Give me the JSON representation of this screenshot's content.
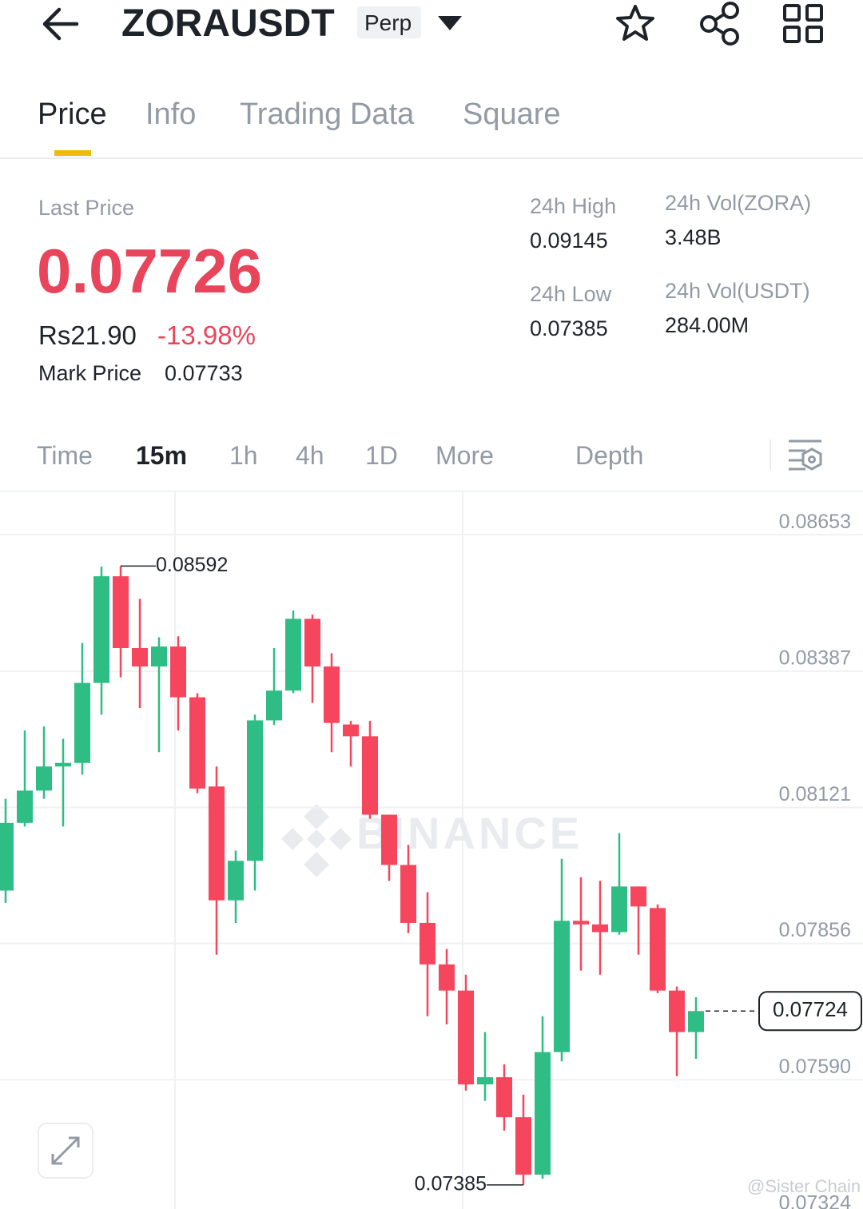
{
  "header": {
    "title": "ZORAUSDT",
    "badge": "Perp"
  },
  "tabs": [
    "Price",
    "Info",
    "Trading Data",
    "Square"
  ],
  "summary": {
    "last_price_label": "Last Price",
    "last_price": "0.07726",
    "fiat_price": "Rs21.90",
    "change": "-13.98%",
    "mark_price_label": "Mark Price",
    "mark_price": "0.07733"
  },
  "stats": [
    {
      "label": "24h High",
      "value": "0.09145"
    },
    {
      "label": "24h Vol(ZORA)",
      "value": "3.48B"
    },
    {
      "label": "24h Low",
      "value": "0.07385"
    },
    {
      "label": "24h Vol(USDT)",
      "value": "284.00M"
    }
  ],
  "intervals": [
    "Time",
    "15m",
    "1h",
    "4h",
    "1D",
    "More",
    "Depth"
  ],
  "footer": {
    "credit": "@Sister Chain"
  },
  "chart_data": {
    "type": "candlestick",
    "watermark": "BINANCE",
    "categories": [
      null,
      null,
      null,
      null,
      null,
      null,
      null,
      null,
      null,
      null,
      null,
      null,
      null,
      null,
      null,
      null,
      null,
      null,
      null,
      null,
      null,
      null,
      null,
      null,
      null,
      null,
      null,
      null,
      null,
      null,
      null,
      null,
      null,
      null,
      null,
      null,
      null
    ],
    "open": [
      0.07959,
      0.08091,
      0.08154,
      0.08201,
      0.08208,
      0.08364,
      0.08572,
      0.08432,
      0.08396,
      0.08435,
      0.08336,
      0.08162,
      0.0794,
      0.08017,
      0.08291,
      0.08349,
      0.08489,
      0.08396,
      0.08283,
      0.0826,
      0.08107,
      0.08009,
      0.07896,
      0.07815,
      0.07764,
      0.07581,
      0.07595,
      0.07517,
      0.07405,
      0.07644,
      0.079,
      0.07893,
      0.07878,
      0.07967,
      0.07925,
      0.07764,
      0.07683
    ],
    "high": [
      0.08138,
      0.08271,
      0.08279,
      0.08255,
      0.08442,
      0.08591,
      0.08592,
      0.08528,
      0.08453,
      0.08455,
      0.08344,
      0.08201,
      0.08037,
      0.08302,
      0.08432,
      0.08505,
      0.08497,
      0.08422,
      0.0829,
      0.0829,
      0.08107,
      0.08048,
      0.07956,
      0.07845,
      0.07795,
      0.07683,
      0.0762,
      0.07561,
      0.07714,
      0.08021,
      0.07985,
      0.07978,
      0.08071,
      0.07967,
      0.07932,
      0.07772,
      0.07751
    ],
    "low": [
      0.07935,
      0.08084,
      0.08138,
      0.08084,
      0.08185,
      0.08302,
      0.08375,
      0.08315,
      0.08229,
      0.08271,
      0.08149,
      0.07834,
      0.07896,
      0.07959,
      0.08282,
      0.08344,
      0.08325,
      0.08229,
      0.08201,
      0.08099,
      0.07978,
      0.07876,
      0.07714,
      0.07698,
      0.07569,
      0.07549,
      0.07491,
      0.07385,
      0.07397,
      0.07626,
      0.07803,
      0.07795,
      0.07873,
      0.07834,
      0.07759,
      0.07597,
      0.07631
    ],
    "close": [
      0.08091,
      0.08154,
      0.08201,
      0.08208,
      0.08364,
      0.08572,
      0.08432,
      0.08396,
      0.08435,
      0.08336,
      0.08158,
      0.0794,
      0.08017,
      0.08291,
      0.08349,
      0.08489,
      0.08396,
      0.08286,
      0.0826,
      0.08107,
      0.08009,
      0.07896,
      0.07815,
      0.07764,
      0.07581,
      0.07595,
      0.07517,
      0.07405,
      0.07644,
      0.079,
      0.07893,
      0.07878,
      0.07967,
      0.07928,
      0.07764,
      0.07683,
      0.07724
    ],
    "colors": {
      "up": "#2ebd85",
      "down": "#f6465d"
    },
    "ylim": [
      0.07338,
      0.08739
    ],
    "yticks": [
      0.08653,
      0.08387,
      0.08121,
      0.07856,
      {
        "value": 0.0759,
        "label": "0.07590"
      },
      0.07324
    ],
    "grid": true,
    "annotations": {
      "high_label": 0.08592,
      "low_label": 0.07385,
      "last_label": 0.07724
    }
  }
}
